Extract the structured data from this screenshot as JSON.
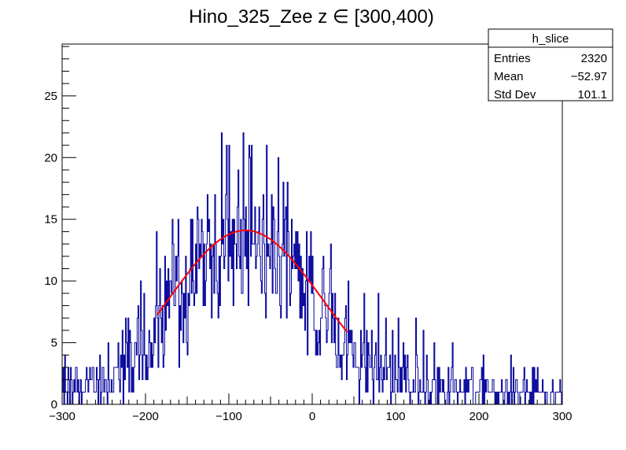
{
  "chart_data": {
    "type": "bar",
    "title": "Hino_325_Zee z  ∈ [300,400)",
    "xlabel": "",
    "ylabel": "",
    "xlim": [
      -300,
      300
    ],
    "ylim": [
      0,
      29.2
    ],
    "x_ticks": [
      -300,
      -200,
      -100,
      0,
      100,
      200,
      300
    ],
    "x_tick_labels": [
      "−300",
      "−200",
      "−100",
      "0",
      "100",
      "200",
      "300"
    ],
    "y_ticks": [
      0,
      5,
      10,
      15,
      20,
      25
    ],
    "y_tick_labels": [
      "0",
      "5",
      "10",
      "15",
      "20",
      "25"
    ],
    "grid": false,
    "histogram": {
      "name": "h_slice",
      "bins": 600,
      "color": "#000099",
      "stats": [
        {
          "label": "Entries",
          "value": "2320"
        },
        {
          "label": "Mean",
          "value": "−52.97"
        },
        {
          "label": "Std Dev",
          "value": "101.1"
        }
      ],
      "envelope_x": [
        -300,
        -260,
        -240,
        -220,
        -200,
        -180,
        -160,
        -140,
        -120,
        -100,
        -80,
        -60,
        -40,
        -20,
        0,
        20,
        40,
        60,
        80,
        100,
        120,
        140,
        160,
        180,
        200,
        220,
        240,
        260,
        280,
        300
      ],
      "envelope_y": [
        1.2,
        1.5,
        2.2,
        3.2,
        5.0,
        7.5,
        9.5,
        11.5,
        13.0,
        14.0,
        14.2,
        13.5,
        12.0,
        10.2,
        8.5,
        6.8,
        5.2,
        4.0,
        3.0,
        2.5,
        2.0,
        1.7,
        1.5,
        1.4,
        1.3,
        1.2,
        1.2,
        1.1,
        1.1,
        1.0
      ]
    },
    "fit": {
      "type": "gaussian",
      "color": "#ff0000",
      "amplitude": 14.1,
      "mean": -80,
      "sigma": 92,
      "range": [
        -186,
        42
      ]
    }
  },
  "stats_box": {
    "title": "h_slice"
  }
}
